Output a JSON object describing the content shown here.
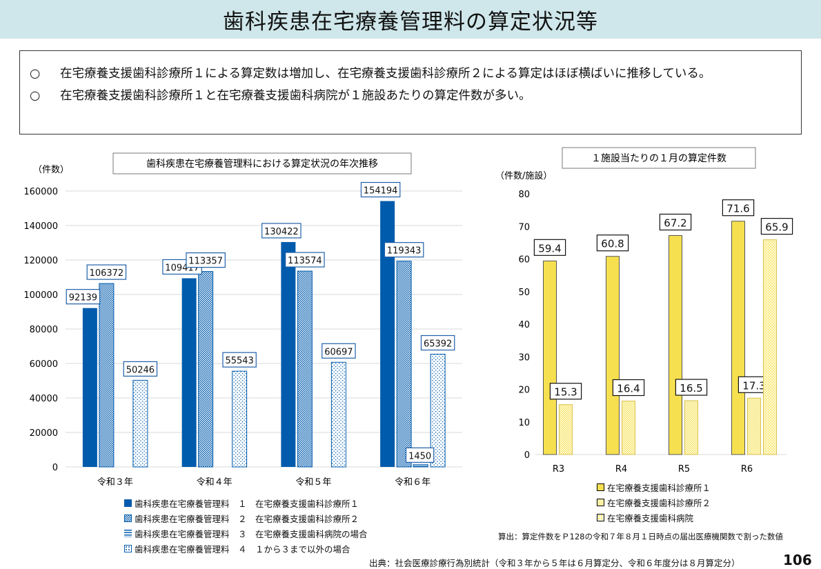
{
  "header": {
    "title": "歯科疾患在宅療養管理料の算定状況等"
  },
  "summary": {
    "mark": "○",
    "items": [
      "在宅療養支援歯科診療所１による算定数は増加し、在宅療養支援歯科診療所２による算定はほぼ横ばいに推移している。",
      "在宅療養支援歯科診療所１と在宅療養支援歯科病院が１施設あたりの算定件数が多い。"
    ]
  },
  "chart_data": [
    {
      "type": "bar",
      "title": "歯科疾患在宅療養管理料における算定状況の年次推移",
      "ylabel": "（件数）",
      "ylim": [
        0,
        160000
      ],
      "yticks": [
        "0",
        "20000",
        "40000",
        "60000",
        "80000",
        "100000",
        "120000",
        "140000",
        "160000"
      ],
      "grid": true,
      "legend": "bottom",
      "categories": [
        "令和３年",
        "令和４年",
        "令和５年",
        "令和６年"
      ],
      "series": [
        {
          "name": "歯科疾患在宅療養管理料　１　在宅療養支援歯科診療所１",
          "values": [
            92139,
            109417,
            130422,
            154194
          ],
          "color": "#005bac",
          "pattern": "solid"
        },
        {
          "name": "歯科疾患在宅療養管理料　２　在宅療養支援歯科診療所２",
          "values": [
            106372,
            113357,
            113574,
            119343
          ],
          "color": "#005bac",
          "pattern": "checker"
        },
        {
          "name": "歯科疾患在宅療養管理料　３　在宅療養支援歯科病院の場合",
          "values": [
            null,
            null,
            null,
            1450
          ],
          "color": "#005bac",
          "pattern": "horizontal-lines"
        },
        {
          "name": "歯科疾患在宅療養管理料　４　１から３まで以外の場合",
          "values": [
            50246,
            55543,
            60697,
            65392
          ],
          "color": "#005bac",
          "pattern": "dots"
        }
      ]
    },
    {
      "type": "bar",
      "title": "１施設当たりの１月の算定件数",
      "ylabel": "（件数/施設）",
      "ylim": [
        0,
        80
      ],
      "yticks": [
        "0",
        "10",
        "20",
        "30",
        "40",
        "50",
        "60",
        "70",
        "80"
      ],
      "grid": false,
      "legend": "bottom",
      "categories": [
        "R3",
        "R4",
        "R5",
        "R6"
      ],
      "series": [
        {
          "name": "在宅療養支援歯科診療所１",
          "values": [
            59.4,
            60.8,
            67.2,
            71.6
          ],
          "color": "#f7e04f",
          "pattern": "solid"
        },
        {
          "name": "在宅療養支援歯科診療所２",
          "values": [
            15.3,
            16.4,
            16.5,
            17.3
          ],
          "color": "#f7e04f",
          "pattern": "checker"
        },
        {
          "name": "在宅療養支援歯科病院",
          "values": [
            null,
            null,
            null,
            65.9
          ],
          "color": "#f7e04f",
          "pattern": "dots"
        }
      ],
      "note": "算出：算定件数をＰ128の令和７年８月１日時点の届出医療機関数で割った数値"
    }
  ],
  "footer": {
    "source": "出典：社会医療診療行為別統計（令和３年から５年は６月算定分、令和６年度分は８月算定分）",
    "page": "106"
  }
}
